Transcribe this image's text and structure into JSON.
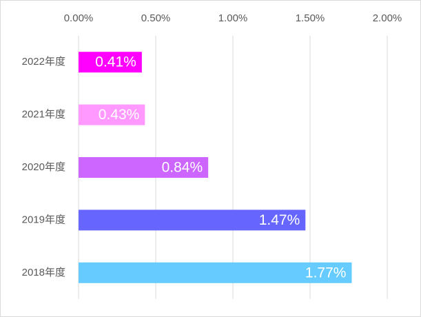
{
  "chart_data": {
    "type": "bar",
    "orientation": "horizontal",
    "categories": [
      "2022年度",
      "2021年度",
      "2020年度",
      "2019年度",
      "2018年度"
    ],
    "values": [
      0.41,
      0.43,
      0.84,
      1.47,
      1.77
    ],
    "value_labels": [
      "0.41%",
      "0.43%",
      "0.84%",
      "1.47%",
      "1.77%"
    ],
    "colors": [
      "#ff00ff",
      "#ff99ff",
      "#cc66ff",
      "#6666ff",
      "#66ccff"
    ],
    "xlim": [
      0,
      2
    ],
    "xticks": [
      {
        "value": 0,
        "label": "0.00%"
      },
      {
        "value": 0.5,
        "label": "0.50%"
      },
      {
        "value": 1,
        "label": "1.00%"
      },
      {
        "value": 1.5,
        "label": "1.50%"
      },
      {
        "value": 2,
        "label": "2.00%"
      }
    ],
    "grid": true
  }
}
